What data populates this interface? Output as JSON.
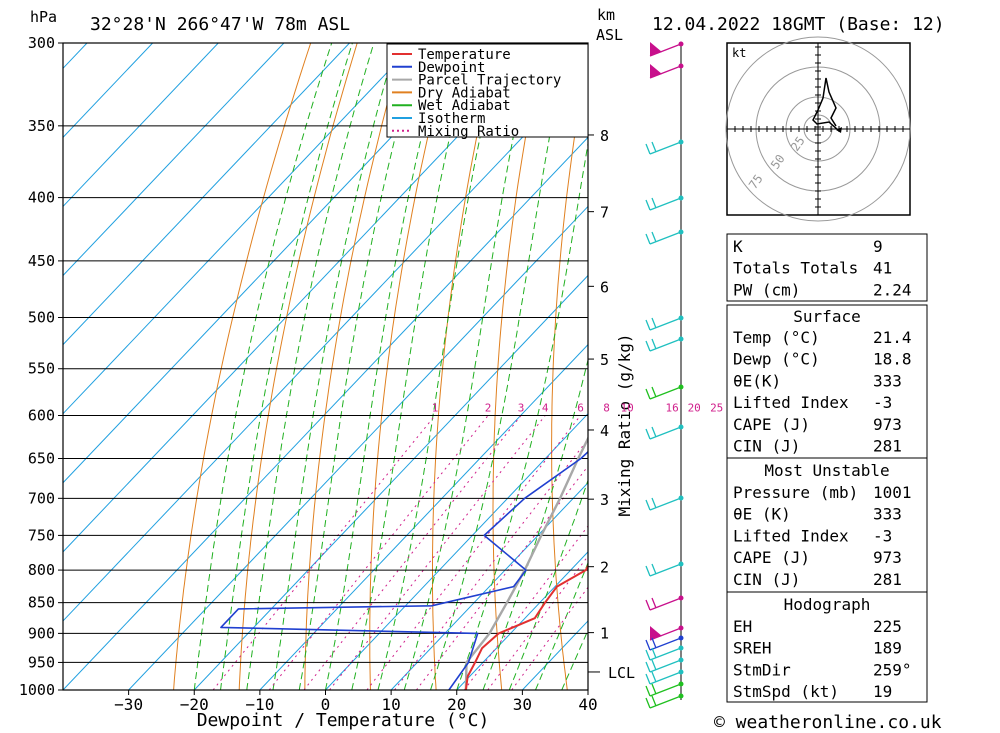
{
  "header": {
    "unit_hpa": "hPa",
    "location": "32°28'N  266°47'W  78m  ASL",
    "unit_km": "km",
    "unit_asl": "ASL",
    "datetime": "12.04.2022  18GMT  (Base: 12)"
  },
  "footer": {
    "copyright": "© weatheronline.co.uk"
  },
  "colors": {
    "temperature": "#e23030",
    "dewpoint": "#2040d0",
    "parcel": "#a8a8a8",
    "dry_adiabat": "#e08020",
    "wet_adiabat": "#20b020",
    "isotherm": "#20a0e0",
    "mixing_ratio": "#d0208c",
    "wind_barb": "#20c0c0"
  },
  "chart_data": [
    {
      "type": "line",
      "chart": "skew-t log-p",
      "xlabel": "Dewpoint / Temperature (°C)",
      "ylabel": "hPa",
      "right_label": "Mixing Ratio (g/kg)",
      "x_ticks": [
        "−30",
        "−20",
        "−10",
        "0",
        "10",
        "20",
        "30",
        "40"
      ],
      "pressure_levels": [
        300,
        350,
        400,
        450,
        500,
        550,
        600,
        650,
        700,
        750,
        800,
        850,
        900,
        950,
        1000
      ],
      "xlim": [
        -40,
        40
      ],
      "ylim": [
        1000,
        300
      ],
      "km_ticks": [
        "1",
        "2",
        "3",
        "4",
        "5",
        "6",
        "7",
        "8"
      ],
      "km_heights": [
        1,
        2,
        3,
        4,
        5,
        6,
        7,
        8
      ],
      "lcl_label": "LCL",
      "lcl_pressure": 967,
      "mixing_ratio_labels": [
        "1",
        "2",
        "3",
        "4",
        "6",
        "8",
        "10",
        "16",
        "20",
        "25"
      ],
      "legend": [
        "Temperature",
        "Dewpoint",
        "Parcel Trajectory",
        "Dry Adiabat",
        "Wet Adiabat",
        "Isotherm",
        "Mixing Ratio"
      ],
      "legend_position": "top-right",
      "series": [
        {
          "name": "Temperature",
          "points": [
            [
              1000,
              21.4
            ],
            [
              975,
              19.7
            ],
            [
              950,
              18.8
            ],
            [
              925,
              17.8
            ],
            [
              900,
              18.2
            ],
            [
              875,
              21.5
            ],
            [
              850,
              20.8
            ],
            [
              825,
              20.3
            ],
            [
              800,
              22.3
            ],
            [
              775,
              21.2
            ],
            [
              750,
              20.0
            ],
            [
              725,
              17.8
            ],
            [
              700,
              15.8
            ],
            [
              675,
              13.7
            ],
            [
              650,
              11.6
            ],
            [
              625,
              10.6
            ],
            [
              600,
              10.6
            ],
            [
              575,
              9.6
            ],
            [
              550,
              8.5
            ],
            [
              525,
              7.0
            ],
            [
              500,
              5.4
            ],
            [
              475,
              3.2
            ],
            [
              450,
              2.0
            ],
            [
              425,
              1.0
            ],
            [
              400,
              -1.8
            ],
            [
              375,
              -4.5
            ],
            [
              350,
              -7.2
            ],
            [
              325,
              -10.2
            ],
            [
              300,
              -13.2
            ]
          ]
        },
        {
          "name": "Dewpoint",
          "points": [
            [
              1000,
              18.8
            ],
            [
              950,
              17.8
            ],
            [
              900,
              15.0
            ],
            [
              890,
              -25.0
            ],
            [
              860,
              -25.0
            ],
            [
              855,
              4.0
            ],
            [
              825,
              13.7
            ],
            [
              800,
              13.2
            ],
            [
              750,
              1.8
            ],
            [
              700,
              2.6
            ],
            [
              650,
              5.4
            ],
            [
              625,
              5.8
            ],
            [
              600,
              3.6
            ],
            [
              550,
              -3.3
            ],
            [
              500,
              -10.7
            ],
            [
              470,
              -8.3
            ],
            [
              450,
              -16.2
            ],
            [
              430,
              -24.8
            ],
            [
              400,
              -26.9
            ],
            [
              370,
              -26.2
            ],
            [
              350,
              -24.9
            ],
            [
              320,
              -20.1
            ],
            [
              300,
              -18.7
            ]
          ]
        },
        {
          "name": "Parcel Trajectory",
          "points": [
            [
              1000,
              21.4
            ],
            [
              950,
              17.5
            ],
            [
              900,
              16.8
            ],
            [
              850,
              15.0
            ],
            [
              800,
              13.0
            ],
            [
              750,
              10.5
            ],
            [
              700,
              8.0
            ],
            [
              650,
              5.0
            ],
            [
              600,
              2.0
            ],
            [
              550,
              -1.5
            ],
            [
              500,
              -5.0
            ],
            [
              450,
              -9.5
            ],
            [
              400,
              -14.5
            ],
            [
              350,
              -20.0
            ],
            [
              300,
              -27.0
            ]
          ]
        }
      ]
    },
    {
      "type": "scatter",
      "chart": "hodograph",
      "unit_label": "kt",
      "ring_labels": [
        "25",
        "50",
        "75"
      ]
    },
    {
      "type": "table",
      "indices": [
        {
          "label": "K",
          "value": "9"
        },
        {
          "label": "Totals Totals",
          "value": "41"
        },
        {
          "label": "PW (cm)",
          "value": "2.24"
        }
      ],
      "surface": {
        "title": "Surface",
        "rows": [
          {
            "label": "Temp (°C)",
            "value": "21.4"
          },
          {
            "label": "Dewp (°C)",
            "value": "18.8"
          },
          {
            "label": "θE(K)",
            "value": "333"
          },
          {
            "label": "Lifted Index",
            "value": "-3"
          },
          {
            "label": "CAPE (J)",
            "value": "973"
          },
          {
            "label": "CIN (J)",
            "value": "281"
          }
        ]
      },
      "most_unstable": {
        "title": "Most Unstable",
        "rows": [
          {
            "label": "Pressure (mb)",
            "value": "1001"
          },
          {
            "label": "θE (K)",
            "value": "333"
          },
          {
            "label": "Lifted Index",
            "value": "-3"
          },
          {
            "label": "CAPE (J)",
            "value": "973"
          },
          {
            "label": "CIN (J)",
            "value": "281"
          }
        ]
      },
      "hodograph": {
        "title": "Hodograph",
        "rows": [
          {
            "label": "EH",
            "value": "225"
          },
          {
            "label": "SREH",
            "value": "189"
          },
          {
            "label": "StmDir",
            "value": "259°"
          },
          {
            "label": "StmSpd (kt)",
            "value": "19"
          }
        ]
      }
    }
  ]
}
